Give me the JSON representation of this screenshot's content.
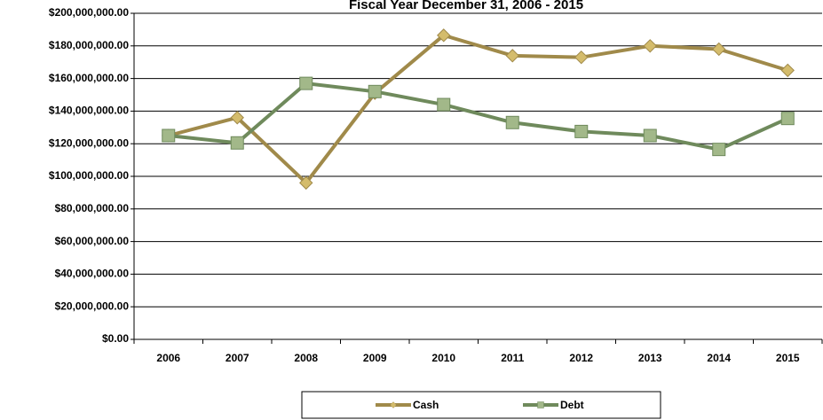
{
  "chart_data": {
    "type": "line",
    "title": "Fiscal Year December 31, 2006 - 2015",
    "categories": [
      "2006",
      "2007",
      "2008",
      "2009",
      "2010",
      "2011",
      "2012",
      "2013",
      "2014",
      "2015"
    ],
    "series": [
      {
        "name": "Cash",
        "color": "#a08a4a",
        "marker_color": "#d4bc6c",
        "marker": "diamond",
        "values": [
          125000000,
          136000000,
          96000000,
          151000000,
          186500000,
          174000000,
          173000000,
          180000000,
          178000000,
          165000000
        ]
      },
      {
        "name": "Debt",
        "color": "#6f8a5c",
        "marker_color": "#a2b889",
        "marker": "square",
        "values": [
          125000000,
          120500000,
          157000000,
          152000000,
          144000000,
          133000000,
          127500000,
          125000000,
          116500000,
          135500000
        ]
      }
    ],
    "ylim": [
      0,
      200000000
    ],
    "yticks": [
      {
        "value": 0,
        "label": "$0.00"
      },
      {
        "value": 20000000,
        "label": "$20,000,000.00"
      },
      {
        "value": 40000000,
        "label": "$40,000,000.00"
      },
      {
        "value": 60000000,
        "label": "$60,000,000.00"
      },
      {
        "value": 80000000,
        "label": "$80,000,000.00"
      },
      {
        "value": 100000000,
        "label": "$100,000,000.00"
      },
      {
        "value": 120000000,
        "label": "$120,000,000.00"
      },
      {
        "value": 140000000,
        "label": "$140,000,000.00"
      },
      {
        "value": 160000000,
        "label": "$160,000,000.00"
      },
      {
        "value": 180000000,
        "label": "$180,000,000.00"
      },
      {
        "value": 200000000,
        "label": "$200,000,000.00"
      }
    ],
    "grid": true,
    "legend": "bottom"
  }
}
